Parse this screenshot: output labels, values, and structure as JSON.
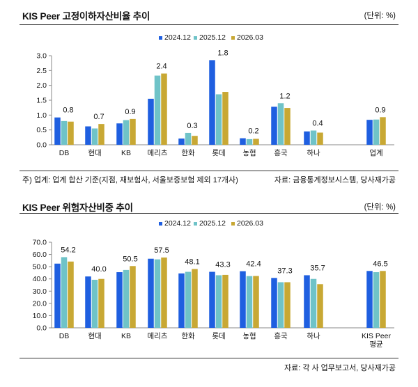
{
  "colors": {
    "s2024": "#1f5fe0",
    "s2025": "#6fc3c8",
    "s2026": "#c8a834",
    "axis": "#888888"
  },
  "chart1": {
    "title": "KIS Peer 고정이하자산비율 추이",
    "unit": "(단위: %)",
    "note": "주) 업계: 업계 합산 기준(지점, 재보험사, 서울보증보험 제외 17개사)",
    "source": "자료: 금융통계정보시스템, 당사재가공"
  },
  "chart2": {
    "title": "KIS Peer 위험자산비중 추이",
    "unit": "(단위: %)",
    "source": "자료: 각 사 업무보고서, 당사재가공"
  },
  "chart_data": [
    {
      "type": "bar",
      "title": "KIS Peer 고정이하자산비율 추이",
      "categories": [
        "DB",
        "현대",
        "KB",
        "메리츠",
        "한화",
        "롯데",
        "농협",
        "흥국",
        "하나",
        "업계"
      ],
      "series": [
        {
          "name": "2024.12",
          "values": [
            0.92,
            0.62,
            0.72,
            1.55,
            0.21,
            2.85,
            0.22,
            1.28,
            0.45,
            0.84
          ]
        },
        {
          "name": "2025.12",
          "values": [
            0.8,
            0.55,
            0.83,
            2.33,
            0.4,
            1.7,
            0.19,
            1.4,
            0.48,
            0.85
          ]
        },
        {
          "name": "2026.03",
          "values": [
            0.78,
            0.7,
            0.87,
            2.4,
            0.3,
            1.78,
            0.2,
            1.24,
            0.41,
            0.93
          ]
        }
      ],
      "data_labels": [
        "0.8",
        "0.7",
        "0.9",
        "2.4",
        "0.3",
        "1.8",
        "0.2",
        "1.2",
        "0.4",
        "0.9"
      ],
      "yticks": [
        "0.0",
        "0.5",
        "1.0",
        "1.5",
        "2.0",
        "2.5",
        "3.0"
      ],
      "ylim": [
        0,
        3.0
      ],
      "legend": "top-center"
    },
    {
      "type": "bar",
      "title": "KIS Peer 위험자산비중 추이",
      "categories": [
        "DB",
        "현대",
        "KB",
        "메리츠",
        "한화",
        "롯데",
        "농협",
        "흥국",
        "하나",
        "KIS Peer|평균"
      ],
      "series": [
        {
          "name": "2024.12",
          "values": [
            52.5,
            42.0,
            45.5,
            56.5,
            44.5,
            45.8,
            46.3,
            40.8,
            43.0,
            46.5
          ]
        },
        {
          "name": "2025.12",
          "values": [
            57.8,
            39.3,
            47.3,
            56.0,
            45.8,
            43.0,
            42.3,
            37.3,
            40.0,
            45.5
          ]
        },
        {
          "name": "2026.03",
          "values": [
            54.2,
            40.0,
            50.5,
            57.5,
            48.1,
            43.3,
            42.4,
            37.3,
            35.7,
            46.5
          ]
        }
      ],
      "data_labels": [
        "54.2",
        "40.0",
        "50.5",
        "57.5",
        "48.1",
        "43.3",
        "42.4",
        "37.3",
        "35.7",
        "46.5"
      ],
      "yticks": [
        "0.0",
        "10.0",
        "20.0",
        "30.0",
        "40.0",
        "50.0",
        "60.0",
        "70.0"
      ],
      "ylim": [
        0,
        70
      ],
      "legend": "top-center"
    }
  ]
}
